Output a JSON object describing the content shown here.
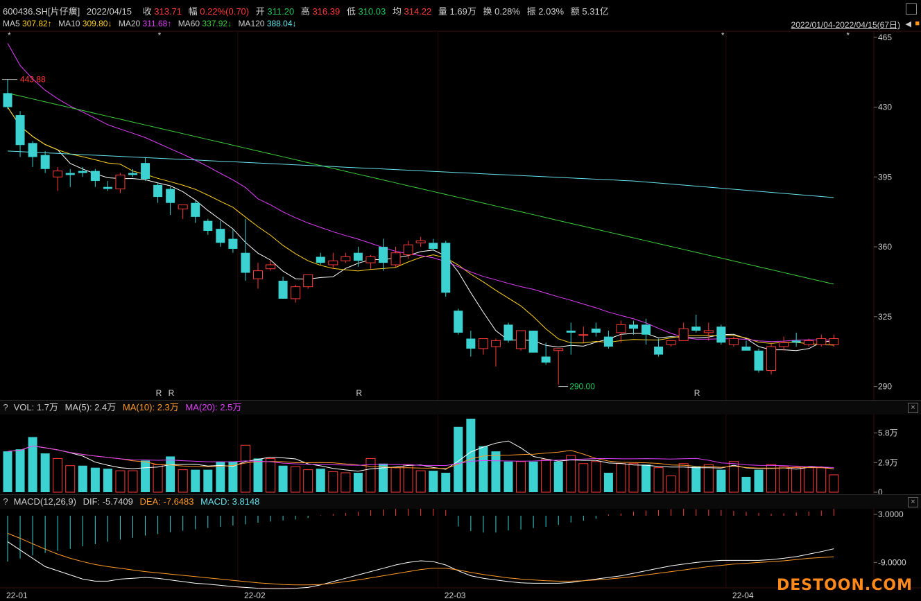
{
  "header": {
    "code": "600436.SH[片仔癀]",
    "date": "2022/04/15",
    "close_label": "收",
    "close": "313.71",
    "amp_label": "幅",
    "amp": "0.22%(0.70)",
    "open_label": "开",
    "open": "311.20",
    "high_label": "高",
    "high": "316.39",
    "low_label": "低",
    "low": "310.03",
    "avg_label": "均",
    "avg": "314.22",
    "vol_label": "量",
    "vol": "1.69万",
    "turn_label": "换",
    "turn": "0.28%",
    "swing_label": "振",
    "swing": "2.03%",
    "amount_label": "额",
    "amount": "5.31亿"
  },
  "ma_legend": {
    "ma5_label": "MA5",
    "ma5": "307.82↑",
    "ma10_label": "MA10",
    "ma10": "309.80↓",
    "ma20_label": "MA20",
    "ma20": "311.68↑",
    "ma60_label": "MA60",
    "ma60": "337.92↓",
    "ma120_label": "MA120",
    "ma120": "388.04↓"
  },
  "range_label": "2022/01/04-2022/04/15(67日)",
  "vol_pane": {
    "q": "?",
    "label": "VOL: 1.7万",
    "ma5": "MA(5): 2.4万",
    "ma10": "MA(10): 2.3万",
    "ma20": "MA(20): 2.5万"
  },
  "macd_pane": {
    "q": "?",
    "label": "MACD(12,26,9)",
    "dif": "DIF: -5.7409",
    "dea": "DEA: -7.6483",
    "macd": "MACD: 3.8148"
  },
  "close_glyph": "×",
  "annotations": {
    "high_mark": "443.88",
    "low_mark": "290.00",
    "star": "*",
    "r": "R"
  },
  "brand": "DESTOON.COM",
  "colors": {
    "up": "#ff3b3b",
    "down": "#3cd2d2",
    "ma5": "#ffffff",
    "ma10": "#ffd21e",
    "ma20": "#e040fb",
    "ma60": "#3cd03c",
    "ma120": "#67e3ea"
  },
  "chart_data": [
    {
      "type": "candlestick",
      "x_ticks": [
        "22-01",
        "22-02",
        "22-03",
        "22-04"
      ],
      "x_tick_index": [
        0,
        19,
        35,
        58
      ],
      "ylim": [
        285,
        467
      ],
      "y_ticks": [
        "465",
        "430",
        "395",
        "360",
        "325",
        "290"
      ],
      "candles": [
        [
          437,
          444,
          430,
          429
        ],
        [
          426,
          428,
          411,
          405
        ],
        [
          412,
          413,
          405,
          400
        ],
        [
          406,
          408,
          399,
          397
        ],
        [
          395,
          400,
          398,
          388
        ],
        [
          397,
          399,
          396,
          390
        ],
        [
          398,
          400,
          397,
          395
        ],
        [
          398,
          399,
          393,
          390
        ],
        [
          390,
          393,
          389,
          388
        ],
        [
          389,
          397,
          396,
          387
        ],
        [
          397,
          399,
          396,
          395
        ],
        [
          402,
          405,
          394,
          393
        ],
        [
          391,
          392,
          385,
          382
        ],
        [
          389,
          390,
          382,
          376
        ],
        [
          379,
          381,
          381,
          374
        ],
        [
          382,
          383,
          375,
          372
        ],
        [
          373,
          374,
          368,
          366
        ],
        [
          369,
          373,
          362,
          360
        ],
        [
          364,
          369,
          359,
          357
        ],
        [
          357,
          374,
          347,
          343
        ],
        [
          344,
          352,
          348,
          339
        ],
        [
          349,
          353,
          351,
          348
        ],
        [
          343,
          345,
          334,
          334
        ],
        [
          334,
          341,
          340,
          332
        ],
        [
          340,
          345,
          346,
          339
        ],
        [
          355,
          357,
          352,
          351
        ],
        [
          351,
          357,
          353,
          349
        ],
        [
          353,
          357,
          355,
          352
        ],
        [
          357,
          360,
          353,
          350
        ],
        [
          352,
          356,
          355,
          349
        ],
        [
          360,
          364,
          352,
          348
        ],
        [
          351,
          360,
          357,
          350
        ],
        [
          356,
          363,
          361,
          354
        ],
        [
          362,
          365,
          363,
          360
        ],
        [
          362,
          364,
          359,
          358
        ],
        [
          362,
          363,
          337,
          335
        ],
        [
          328,
          329,
          317,
          316
        ],
        [
          314,
          318,
          309,
          305
        ],
        [
          309,
          314,
          314,
          306
        ],
        [
          310,
          314,
          313,
          300
        ],
        [
          321,
          322,
          313,
          312
        ],
        [
          309,
          311,
          318,
          308
        ],
        [
          318,
          318,
          307,
          307
        ],
        [
          305,
          312,
          302,
          301
        ],
        [
          308,
          309,
          309,
          291
        ],
        [
          318,
          322,
          317,
          306
        ],
        [
          316,
          320,
          316,
          312
        ],
        [
          319,
          322,
          317,
          315
        ],
        [
          315,
          318,
          310,
          309
        ],
        [
          317,
          323,
          321,
          312
        ],
        [
          321,
          323,
          319,
          316
        ],
        [
          321,
          324,
          316,
          311
        ],
        [
          310,
          314,
          306,
          305
        ],
        [
          311,
          313,
          313,
          310
        ],
        [
          313,
          322,
          319,
          314
        ],
        [
          320,
          326,
          318,
          317
        ],
        [
          317,
          322,
          318,
          313
        ],
        [
          320,
          321,
          312,
          311
        ],
        [
          311,
          315,
          314,
          310
        ],
        [
          310,
          313,
          308,
          309
        ],
        [
          308,
          309,
          298,
          297
        ],
        [
          298,
          312,
          310,
          296
        ],
        [
          310,
          315,
          312,
          308
        ],
        [
          313,
          317,
          312,
          310
        ],
        [
          311,
          314,
          313,
          310
        ],
        [
          311,
          316,
          314,
          310
        ],
        [
          311,
          316,
          314,
          310
        ]
      ],
      "candle_order": "open, high, close, low",
      "high_annotation": 443.88,
      "low_annotation": 290.0
    },
    {
      "type": "bar",
      "name": "VOL",
      "y_ticks": [
        "5.8万",
        "2.9万",
        "0"
      ],
      "ylim": [
        0,
        7.2
      ],
      "values": [
        4.0,
        4.2,
        5.4,
        3.8,
        3.3,
        2.6,
        2.6,
        2.4,
        2.3,
        2.1,
        2.1,
        3.1,
        2.7,
        3.5,
        2.2,
        2.2,
        2.2,
        3.0,
        3.0,
        4.6,
        3.3,
        3.3,
        2.6,
        2.5,
        2.2,
        2.3,
        2.0,
        1.9,
        1.9,
        3.3,
        2.8,
        2.4,
        2.7,
        2.1,
        2.1,
        1.9,
        6.4,
        7.2,
        4.5,
        4.0,
        3.0,
        3.0,
        3.0,
        3.2,
        3.0,
        3.6,
        2.8,
        3.0,
        1.9,
        2.8,
        2.8,
        2.7,
        2.4,
        1.6,
        2.8,
        2.5,
        2.7,
        2.2,
        3.0,
        1.5,
        2.2,
        2.7,
        2.5,
        2.4,
        2.4,
        2.4,
        1.7
      ],
      "colors_up": [
        false,
        false,
        false,
        false,
        true,
        true,
        false,
        false,
        false,
        true,
        true,
        false,
        true,
        false,
        true,
        false,
        false,
        false,
        false,
        true,
        false,
        true,
        false,
        true,
        true,
        false,
        true,
        true,
        false,
        true,
        false,
        true,
        true,
        true,
        false,
        false,
        false,
        false,
        false,
        false,
        false,
        true,
        false,
        true,
        false,
        true,
        true,
        true,
        false,
        true,
        true,
        false,
        true,
        true,
        true,
        false,
        true,
        false,
        true,
        false,
        false,
        true,
        true,
        true,
        true,
        true,
        true
      ]
    },
    {
      "type": "bar",
      "name": "MACD",
      "y_ticks": [
        "3.0000",
        "-9.0000"
      ],
      "ylim": [
        -15,
        3.5
      ],
      "values": [
        -15.0,
        -14.0,
        -13.0,
        -12.2,
        -11.5,
        -10.8,
        -10.0,
        -9.3,
        -8.5,
        -7.8,
        -7.2,
        -6.5,
        -6.0,
        -5.4,
        -4.9,
        -4.4,
        -4.0,
        -3.6,
        -3.2,
        -2.8,
        -2.3,
        -1.9,
        -1.5,
        -1.2,
        -0.7,
        0.2,
        0.8,
        1.3,
        1.8,
        2.4,
        2.8,
        3.2,
        3.4,
        3.6,
        3.2,
        2.6,
        -3.5,
        -5.0,
        -5.5,
        -5.5,
        -4.8,
        -4.5,
        -4.0,
        -3.6,
        -3.0,
        -2.2,
        -1.6,
        -1.0,
        0.6,
        1.0,
        1.8,
        2.3,
        2.6,
        3.0,
        3.4,
        3.0,
        2.8,
        2.6,
        2.2,
        1.8,
        1.3,
        0.9,
        1.1,
        1.5,
        1.9,
        2.3,
        3.8
      ]
    }
  ]
}
